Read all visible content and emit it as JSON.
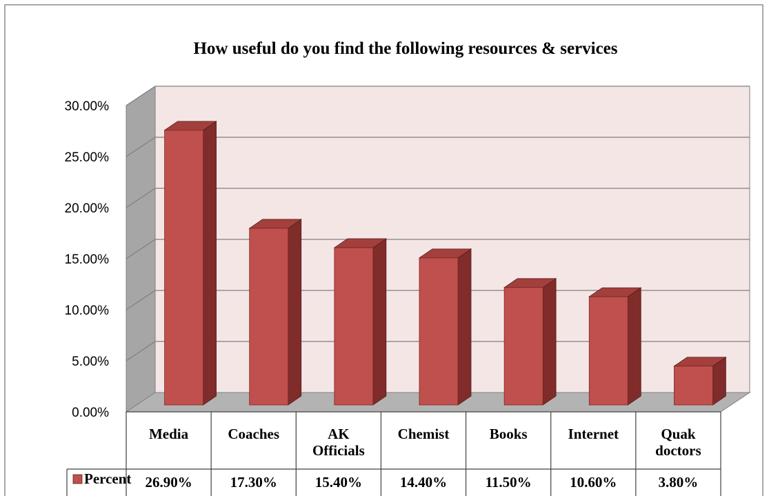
{
  "chart_data": {
    "type": "bar",
    "title": "How useful do you find the following resources & services",
    "categories": [
      [
        "Media"
      ],
      [
        "Coaches"
      ],
      [
        "AK",
        "Officials"
      ],
      [
        "Chemist"
      ],
      [
        "Books"
      ],
      [
        "Internet"
      ],
      [
        "Quak",
        "doctors"
      ]
    ],
    "series": [
      {
        "name": "Percent",
        "values": [
          26.9,
          17.3,
          15.4,
          14.4,
          11.5,
          10.6,
          3.8
        ],
        "value_labels": [
          "26.90%",
          "17.30%",
          "15.40%",
          "14.40%",
          "11.50%",
          "10.60%",
          "3.80%"
        ]
      }
    ],
    "ylim": [
      0,
      30
    ],
    "y_ticks": [
      "0.00%",
      "5.00%",
      "10.00%",
      "15.00%",
      "20.00%",
      "25.00%",
      "30.00%"
    ],
    "grid": true,
    "data_table": true,
    "colors": {
      "bar_front": "#c0504d",
      "bar_side": "#7f2c2a",
      "bar_top": "#a33f3c",
      "back_wall": "#f5e6e6",
      "side_wall": "#a6a6a6",
      "floor": "#b3b3b3",
      "grid": "#7f7f7f"
    }
  }
}
